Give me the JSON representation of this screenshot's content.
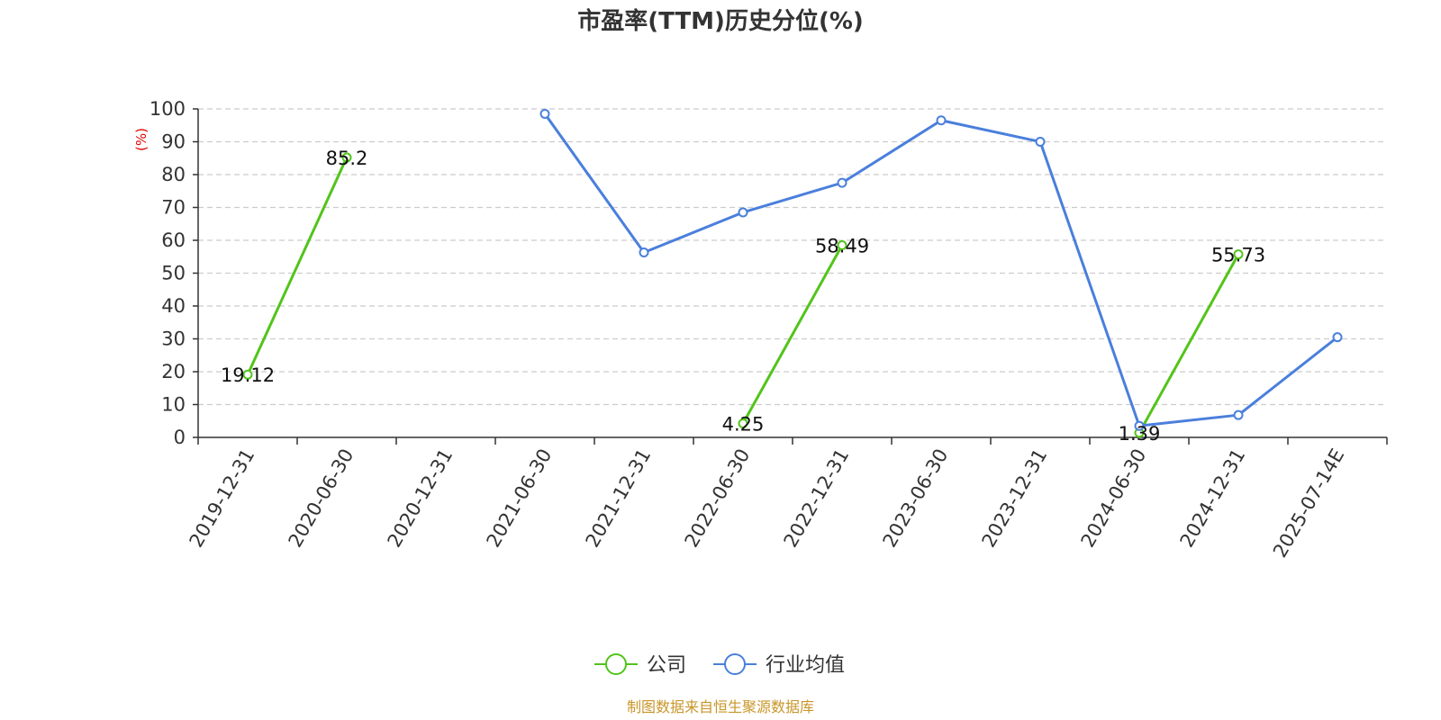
{
  "chart_data": {
    "type": "line",
    "title": "市盈率(TTM)历史分位(%)",
    "ylabel": "(%)",
    "xlabel": "",
    "ylim": [
      0,
      100
    ],
    "yticks": [
      0,
      10,
      20,
      30,
      40,
      50,
      60,
      70,
      80,
      90,
      100
    ],
    "grid": true,
    "legend_position": "bottom",
    "categories": [
      "2019-12-31",
      "2020-06-30",
      "2020-12-31",
      "2021-06-30",
      "2021-12-31",
      "2022-06-30",
      "2022-12-31",
      "2023-06-30",
      "2023-12-31",
      "2024-06-30",
      "2024-12-31",
      "2025-07-14E"
    ],
    "series": [
      {
        "name": "公司",
        "color": "#52c41a",
        "values": [
          19.12,
          85.2,
          null,
          null,
          null,
          4.25,
          58.49,
          null,
          null,
          1.39,
          55.73,
          null
        ],
        "show_labels": true
      },
      {
        "name": "行业均值",
        "color": "#4a7fdc",
        "values": [
          null,
          null,
          null,
          98.5,
          56.3,
          68.5,
          77.5,
          96.5,
          90.0,
          3.5,
          6.8,
          30.5
        ],
        "show_labels": false
      }
    ],
    "source": "制图数据来自恒生聚源数据库"
  }
}
